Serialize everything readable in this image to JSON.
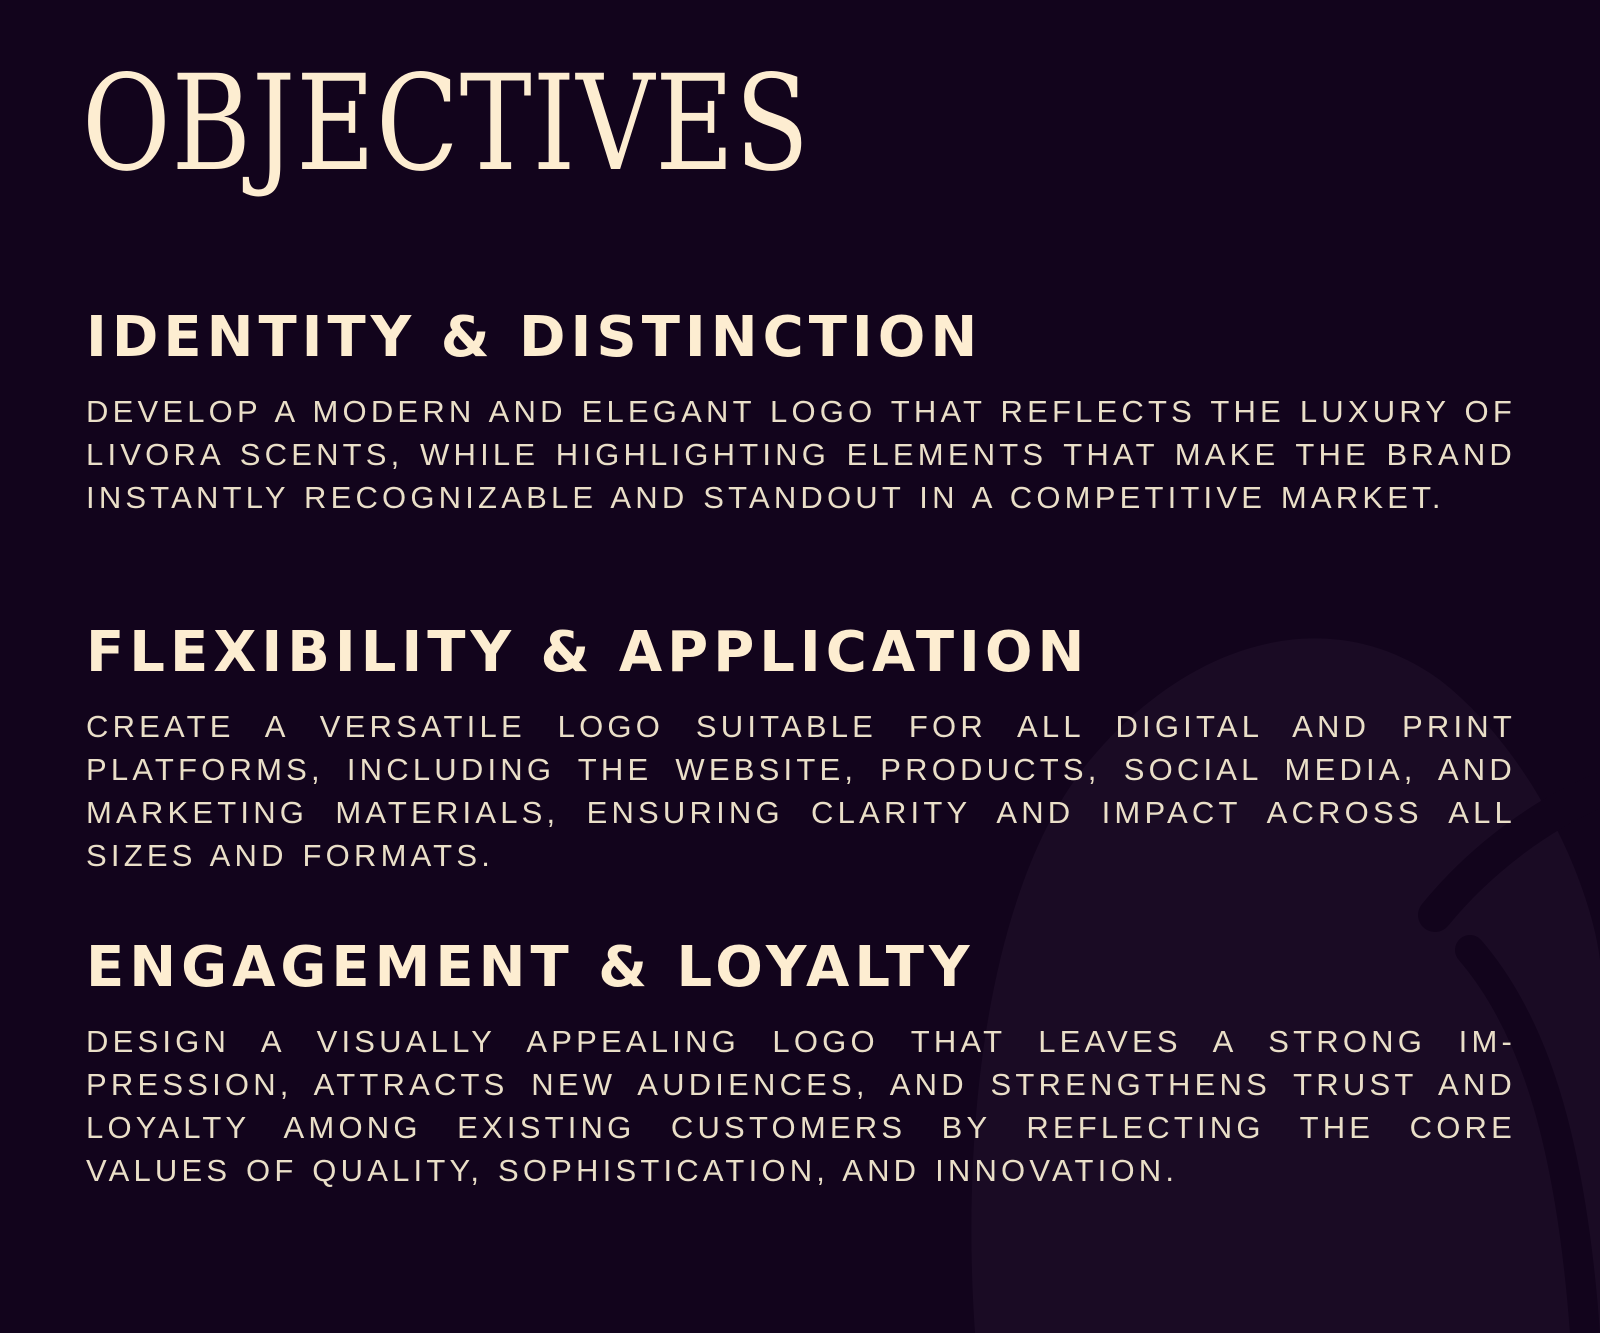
{
  "page": {
    "title": "OBJECTIVES",
    "background_color": "#12041c",
    "accent_color": "#fdedd1"
  },
  "sections": [
    {
      "heading": "IDENTITY & DISTINCTION",
      "body": "DEVELOP A MODERN AND ELEGANT LOGO THAT REFLECTS THE LUXURY OF LIVORA SCENTS, WHILE HIGHLIGHTING ELEMENTS THAT MAKE THE BRAND INSTANTLY RECOGNIZABLE AND STANDOUT IN A COMPETITIVE MARKET."
    },
    {
      "heading": "FLEXIBILITY & APPLICATION",
      "body": "CREATE A VERSATILE LOGO SUITABLE FOR ALL DIGITAL AND PRINT PLATFORMS, INCLUDING THE WEBSITE, PRODUCTS, SOCIAL MEDIA, AND MARKETING MATERIALS, ENSURING CLARITY AND IMPACT ACROSS ALL SIZES AND FORMATS."
    },
    {
      "heading": "ENGAGEMENT & LOYALTY",
      "body": "DESIGN A VISUALLY APPEALING LOGO THAT LEAVES A STRONG IM-PRESSION, ATTRACTS NEW AUDIENCES, AND STRENGTHENS TRUST AND LOYALTY AMONG EXISTING CUSTOMERS BY REFLECTING THE CORE VALUES OF QUALITY, SOPHISTICATION, AND INNOVATION."
    }
  ]
}
